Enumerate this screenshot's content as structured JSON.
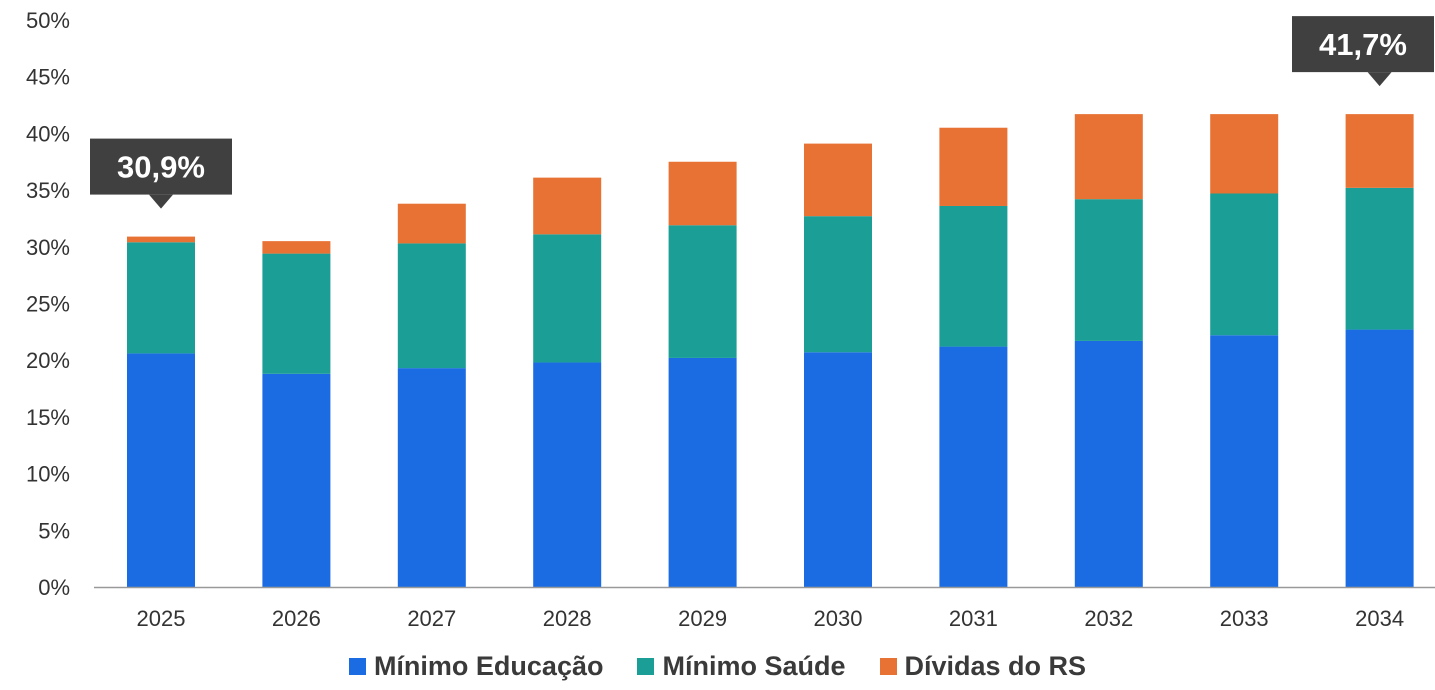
{
  "chart_data": {
    "type": "bar",
    "stacked": true,
    "categories": [
      "2025",
      "2026",
      "2027",
      "2028",
      "2029",
      "2030",
      "2031",
      "2032",
      "2033",
      "2034"
    ],
    "series": [
      {
        "name": "Mínimo Educação",
        "color": "#1b6ce3",
        "values": [
          20.6,
          18.8,
          19.3,
          19.8,
          20.2,
          20.7,
          21.2,
          21.7,
          22.2,
          22.7
        ]
      },
      {
        "name": "Mínimo Saúde",
        "color": "#1a9e96",
        "values": [
          9.8,
          10.6,
          11.0,
          11.3,
          11.7,
          12.0,
          12.4,
          12.5,
          12.5,
          12.5
        ]
      },
      {
        "name": "Dívidas do RS",
        "color": "#e87234",
        "values": [
          0.5,
          1.1,
          3.5,
          5.0,
          5.6,
          6.4,
          6.9,
          7.5,
          7.0,
          6.5
        ]
      }
    ],
    "ylim": [
      0,
      50
    ],
    "yticks": [
      "0%",
      "5%",
      "10%",
      "15%",
      "20%",
      "25%",
      "30%",
      "35%",
      "40%",
      "45%",
      "50%"
    ],
    "annotations": [
      {
        "category": "2025",
        "text": "30,9%"
      },
      {
        "category": "2034",
        "text": "41,7%"
      }
    ],
    "legend_position": "bottom",
    "grid": false
  }
}
